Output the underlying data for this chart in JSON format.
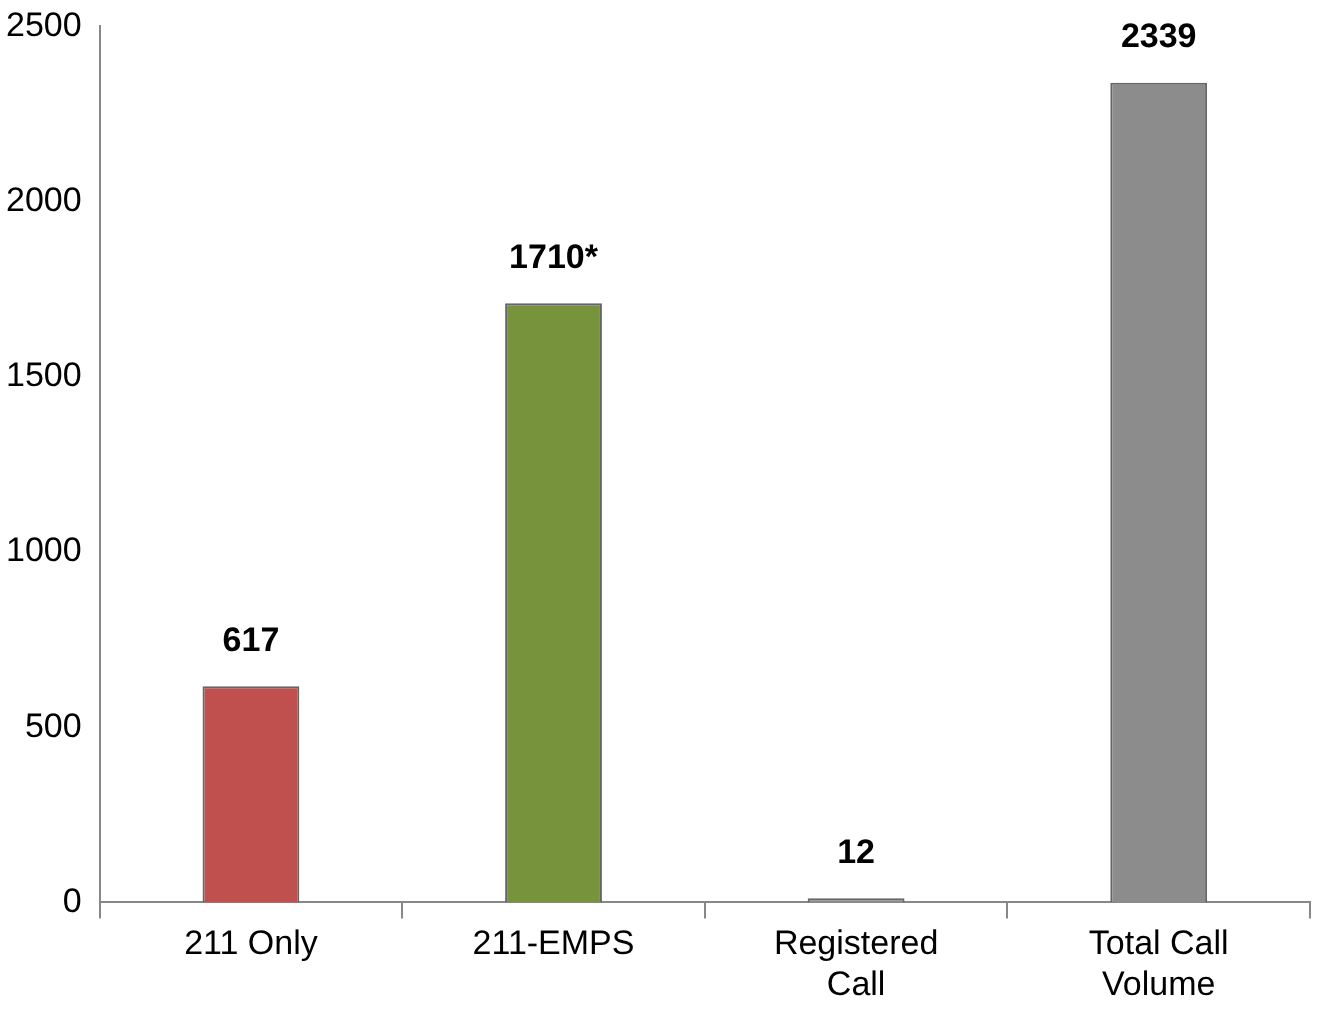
{
  "chart_data": {
    "type": "bar",
    "categories": [
      "211 Only",
      "211-EMPS",
      "Registered Call",
      "Total Call Volume"
    ],
    "values": [
      617,
      1710,
      12,
      2339
    ],
    "colors": [
      "#c0504d",
      "#77933c",
      "#8c8c8c",
      "#8c8c8c"
    ],
    "value_labels": [
      "617",
      "1710*",
      "12",
      "2339"
    ],
    "ylim": [
      0,
      2500
    ],
    "yticks": [
      0,
      500,
      1000,
      1500,
      2000,
      2500
    ],
    "grid": false,
    "legend": false
  }
}
